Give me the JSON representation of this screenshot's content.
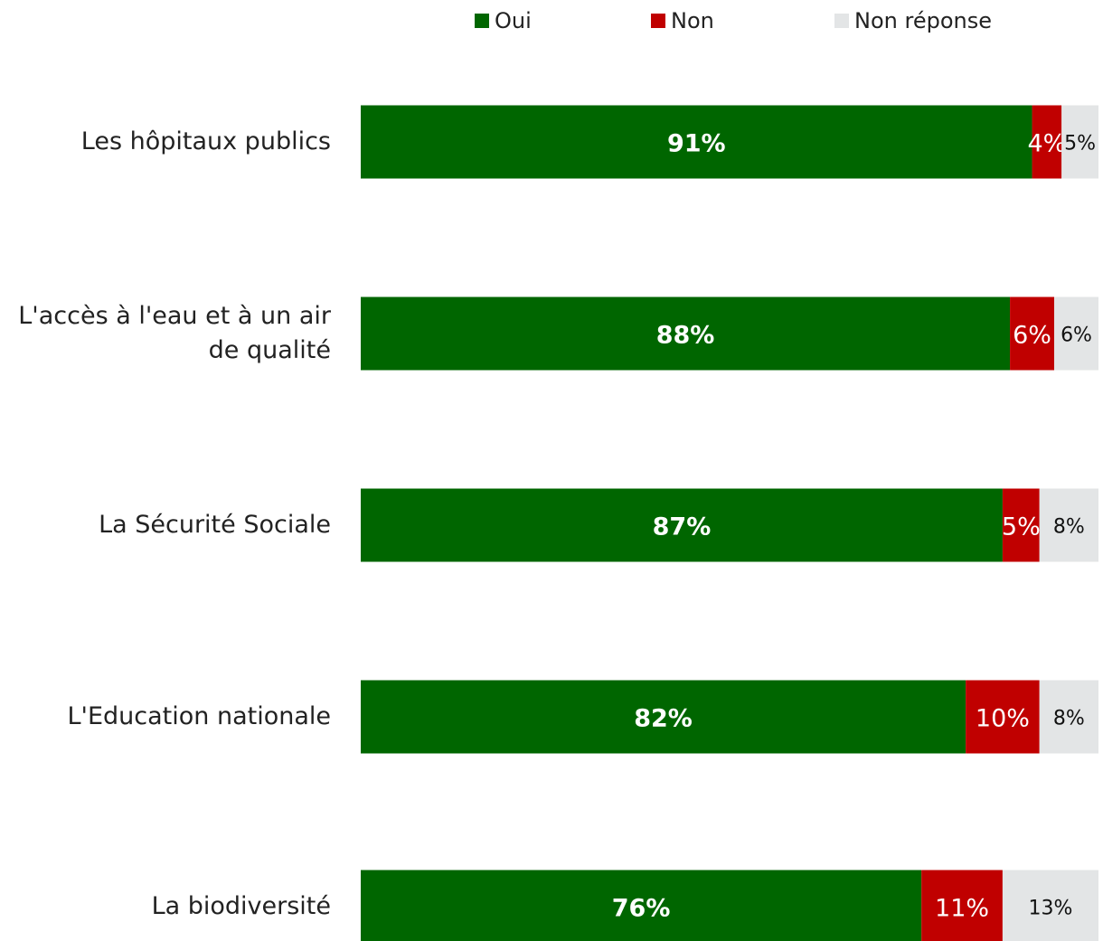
{
  "chart_data": {
    "type": "stacked-bar-horizontal",
    "categories": [
      "Les hôpitaux publics",
      "L'accès à l'eau et à un air de qualité",
      "La Sécurité Sociale",
      "L'Education nationale",
      "La biodiversité"
    ],
    "xlim": [
      0,
      100
    ],
    "series": [
      {
        "name": "Oui",
        "color": "#006600",
        "values": [
          91,
          88,
          87,
          82,
          76
        ],
        "value_labels": [
          "91%",
          "88%",
          "87%",
          "82%",
          "76%"
        ]
      },
      {
        "name": "Non",
        "color": "#c00000",
        "values": [
          4,
          6,
          5,
          10,
          11
        ],
        "value_labels": [
          "4%",
          "6%",
          "5%",
          "10%",
          "11%"
        ]
      },
      {
        "name": "Non réponse",
        "color": "#e3e5e6",
        "values": [
          5,
          6,
          8,
          8,
          13
        ],
        "value_labels": [
          "5%",
          "6%",
          "8%",
          "8%",
          "13%"
        ]
      }
    ],
    "legend": "top"
  }
}
